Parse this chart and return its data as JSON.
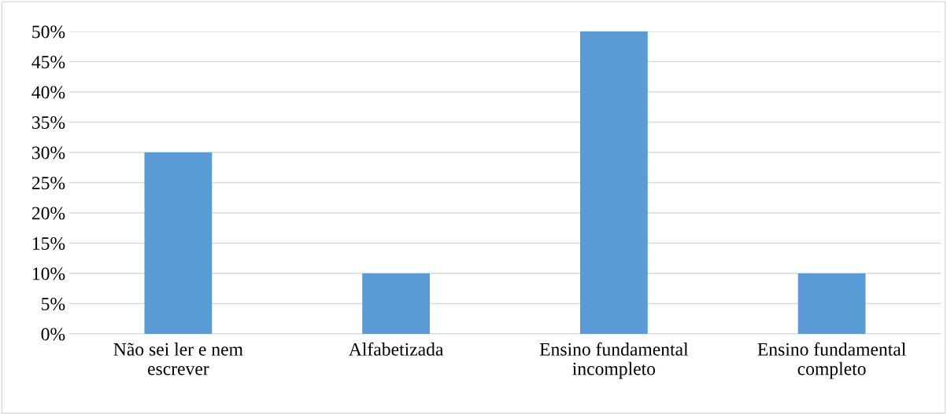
{
  "chart_data": {
    "type": "bar",
    "categories": [
      "Não sei ler e nem\nescrever",
      "Alfabetizada",
      "Ensino fundamental\nincompleto",
      "Ensino fundamental\ncompleto"
    ],
    "values": [
      30,
      10,
      50,
      10
    ],
    "color": "#5b9bd5",
    "ylim": [
      0,
      50
    ],
    "yticks": [
      {
        "value": 0,
        "label": "0%"
      },
      {
        "value": 5,
        "label": "5%"
      },
      {
        "value": 10,
        "label": "10%"
      },
      {
        "value": 15,
        "label": "15%"
      },
      {
        "value": 20,
        "label": "20%"
      },
      {
        "value": 25,
        "label": "25%"
      },
      {
        "value": 30,
        "label": "30%"
      },
      {
        "value": 35,
        "label": "35%"
      },
      {
        "value": 40,
        "label": "40%"
      },
      {
        "value": 45,
        "label": "45%"
      },
      {
        "value": 50,
        "label": "50%"
      }
    ],
    "grid": "y"
  }
}
